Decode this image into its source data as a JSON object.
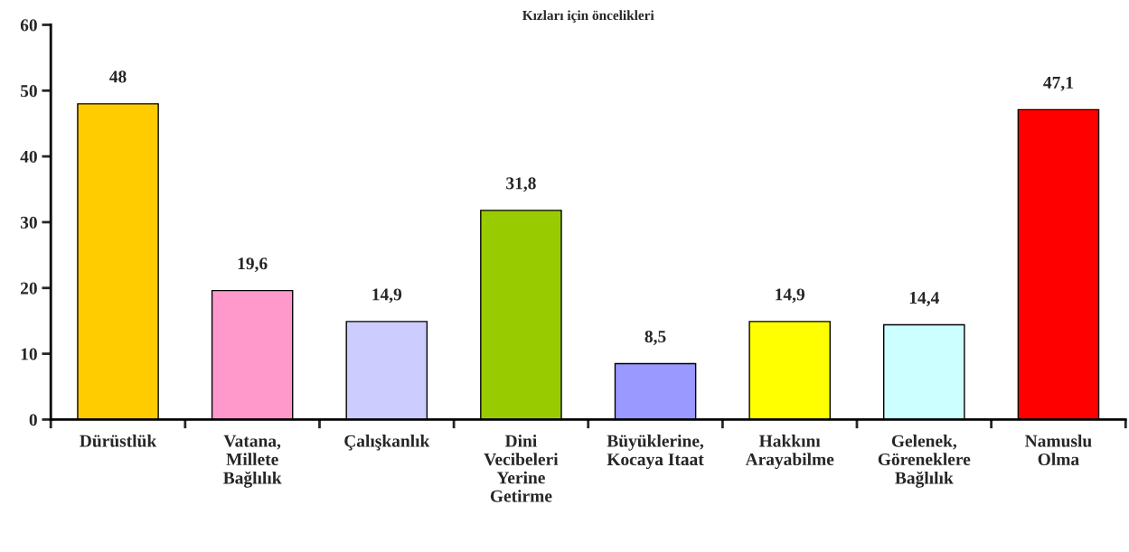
{
  "chart_data": {
    "type": "bar",
    "title": "Kızları için öncelikleri",
    "categories": [
      "Dürüstlük",
      "Vatana,\nMillete\nBağlılık",
      "Çalışkanlık",
      "Dini\nVecibeleri\nYerine\nGetirme",
      "Büyüklerine,\nKocaya Itaat",
      "Hakkını\nArayabilme",
      "Gelenek,\nGöreneklere\nBağlılık",
      "Namuslu\nOlma"
    ],
    "values": [
      48,
      19.6,
      14.9,
      31.8,
      8.5,
      14.9,
      14.4,
      47.1
    ],
    "value_labels": [
      "48",
      "19,6",
      "14,9",
      "31,8",
      "8,5",
      "14,9",
      "14,4",
      "47,1"
    ],
    "colors": [
      "#ffcc00",
      "#ff99cc",
      "#ccccff",
      "#99cc00",
      "#9999ff",
      "#ffff00",
      "#ccffff",
      "#ff0000"
    ],
    "ylim": [
      0,
      60
    ],
    "yticks": [
      0,
      10,
      20,
      30,
      40,
      50,
      60
    ],
    "grid": false,
    "legend": false
  }
}
